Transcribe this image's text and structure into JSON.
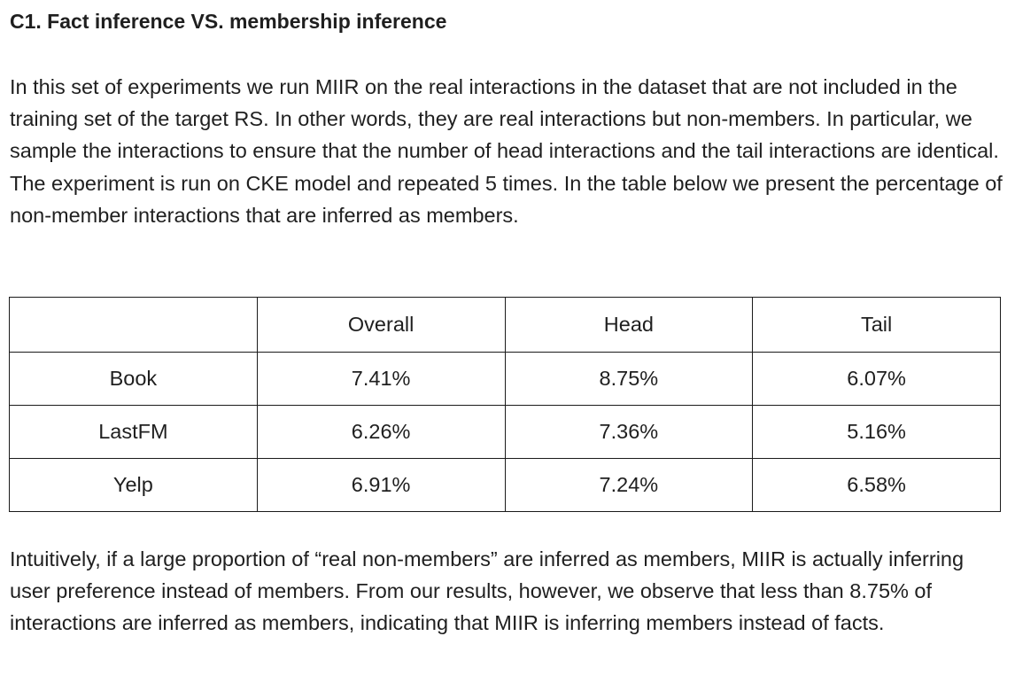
{
  "heading": "C1. Fact inference VS. membership inference",
  "intro_paragraph": "In this set of experiments we run MIIR on the real interactions in the dataset that are not included in the training set of the target RS. In other words, they are real interactions but non-members. In particular, we sample the interactions to ensure that the number of head interactions and the tail interactions are identical. The experiment is run on CKE model and repeated 5 times. In the table below we present the percentage of non-member interactions that are inferred as members.",
  "table": {
    "headers": [
      "",
      "Overall",
      "Head",
      "Tail"
    ],
    "rows": [
      {
        "dataset": "Book",
        "overall": "7.41%",
        "head": "8.75%",
        "tail": "6.07%"
      },
      {
        "dataset": "LastFM",
        "overall": "6.26%",
        "head": "7.36%",
        "tail": "5.16%"
      },
      {
        "dataset": "Yelp",
        "overall": "6.91%",
        "head": "7.24%",
        "tail": "6.58%"
      }
    ]
  },
  "conclusion_paragraph": "Intuitively, if a large proportion of “real non-members” are inferred as members, MIIR is actually inferring user preference instead of members. From our results, however, we observe that less than 8.75% of interactions are inferred as members, indicating that MIIR is inferring members instead of facts."
}
